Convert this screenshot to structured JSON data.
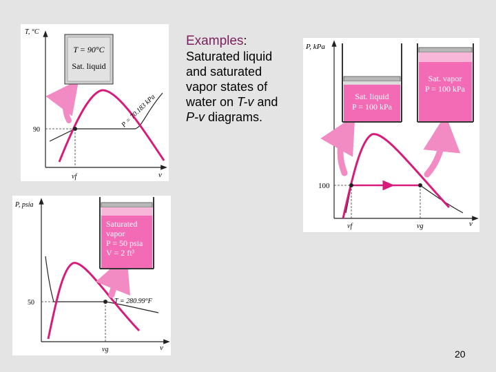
{
  "slide": {
    "heading": "Examples",
    "heading_colon": ":",
    "caption_line1": "Saturated liquid",
    "caption_line2": "and saturated",
    "caption_line3": "vapor states of",
    "caption_line4_pre": "water on ",
    "caption_line4_em": "T-v",
    "caption_line4_post": " and",
    "caption_line5_em": "P-v",
    "caption_line5_post": " diagrams.",
    "page_number": "20"
  },
  "tv_diagram": {
    "y_axis_label": "T, °C",
    "x_axis_label": "v",
    "tick_value": "90",
    "vf_label": "vf",
    "isobar_label": "P = 70.183 kPa",
    "box_line1": "T = 90°C",
    "box_line2": "Sat. liquid"
  },
  "pv_water_diagram": {
    "y_axis_label": "P, kPa",
    "x_axis_label": "v",
    "tick_value": "100",
    "vf_label": "vf",
    "vg_label": "vg",
    "cyl1_line1": "Sat. liquid",
    "cyl1_line2": "P = 100 kPa",
    "cyl2_line1": "Sat. vapor",
    "cyl2_line2": "P = 100 kPa"
  },
  "pv_psia_diagram": {
    "y_axis_label": "P, psia",
    "x_axis_label": "v",
    "tick_value": "50",
    "vg_label": "vg",
    "isotherm_label": "T = 280.99°F",
    "cyl_line1": "Saturated",
    "cyl_line2": "vapor",
    "cyl_line3": "P = 50 psia",
    "cyl_line4": "V = 2 ft³"
  },
  "colors": {
    "background": "#e4e4e4",
    "dome_curve": "#d81b7a",
    "fluid_pink": "#f26bb4",
    "heading": "#7a1f5c"
  }
}
